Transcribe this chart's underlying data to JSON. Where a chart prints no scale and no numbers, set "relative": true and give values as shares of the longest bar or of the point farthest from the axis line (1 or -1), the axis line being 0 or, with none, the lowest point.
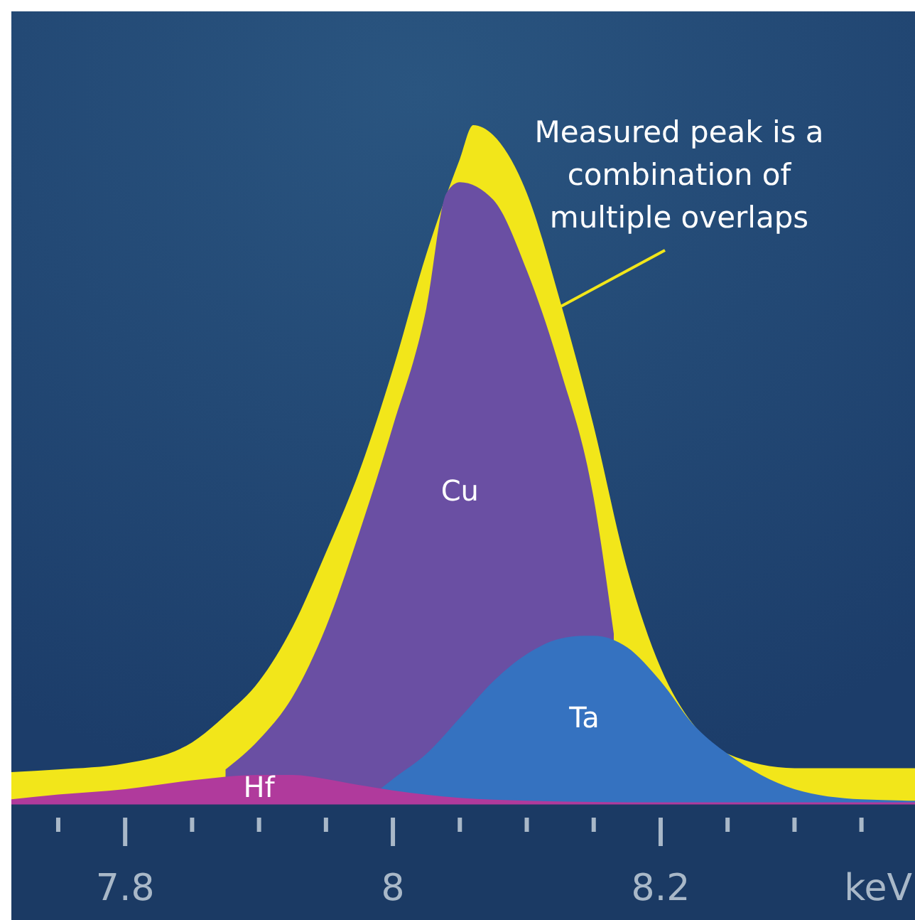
{
  "chart_data": {
    "type": "area",
    "relative": true,
    "xlabel": "keV",
    "xlim": [
      7.715,
      8.39
    ],
    "xticks": [
      {
        "value": 7.75,
        "label": null
      },
      7.8,
      {
        "value": 7.85,
        "label": null
      },
      {
        "value": 7.9,
        "label": null
      },
      {
        "value": 7.95,
        "label": null
      },
      8,
      {
        "value": 8.05,
        "label": null
      },
      {
        "value": 8.1,
        "label": null
      },
      {
        "value": 8.15,
        "label": null
      },
      8.2,
      {
        "value": 8.25,
        "label": null
      },
      {
        "value": 8.3,
        "label": null
      },
      {
        "value": 8.35,
        "label": null
      }
    ],
    "tick_labels": "x",
    "annotations": [
      {
        "text": "Measured peak is a combination of multiple overlaps",
        "x": 8.123,
        "y": 0.73
      }
    ],
    "series": [
      {
        "color": "#f2e61a",
        "x": [
          7.715,
          7.75,
          7.8,
          7.85,
          7.875,
          7.9,
          7.925,
          7.95,
          7.975,
          8.0,
          8.025,
          8.05,
          8.06,
          8.075,
          8.1,
          8.125,
          8.15,
          8.175,
          8.2,
          8.225,
          8.25,
          8.3,
          8.35,
          8.39
        ],
        "values": [
          0.046,
          0.05,
          0.059,
          0.09,
          0.13,
          0.18,
          0.26,
          0.37,
          0.49,
          0.64,
          0.81,
          0.95,
          1.0,
          0.985,
          0.9,
          0.74,
          0.556,
          0.346,
          0.2,
          0.115,
          0.073,
          0.052,
          0.052,
          0.052
        ]
      },
      {
        "name": "Cu",
        "color": "#6a4fa3",
        "x": [
          7.875,
          7.9,
          7.925,
          7.95,
          7.975,
          8.0,
          8.025,
          8.04,
          8.05,
          8.075,
          8.1,
          8.125,
          8.15,
          8.165
        ],
        "values": [
          0.05,
          0.094,
          0.157,
          0.26,
          0.4,
          0.556,
          0.73,
          0.9,
          0.916,
          0.89,
          0.786,
          0.64,
          0.45,
          0.25
        ]
      },
      {
        "name": "Ta",
        "color": "#3572c0",
        "x": [
          7.977,
          8.0,
          8.025,
          8.05,
          8.075,
          8.1,
          8.125,
          8.143,
          8.15,
          8.175,
          8.2,
          8.225,
          8.25,
          8.275,
          8.3,
          8.35,
          8.39
        ],
        "values": [
          0,
          0.036,
          0.073,
          0.126,
          0.18,
          0.22,
          0.243,
          0.247,
          0.247,
          0.23,
          0.18,
          0.115,
          0.073,
          0.042,
          0.021,
          0.006,
          0.004
        ]
      },
      {
        "name": "Hf",
        "color": "#b03a9c",
        "x": [
          7.715,
          7.75,
          7.8,
          7.85,
          7.9,
          7.925,
          7.95,
          7.975,
          8.0,
          8.05,
          8.1,
          8.15,
          8.2
        ],
        "values": [
          0.006,
          0.013,
          0.021,
          0.034,
          0.042,
          0.042,
          0.036,
          0.027,
          0.019,
          0.008,
          0.004,
          0.002,
          0
        ]
      }
    ]
  }
}
